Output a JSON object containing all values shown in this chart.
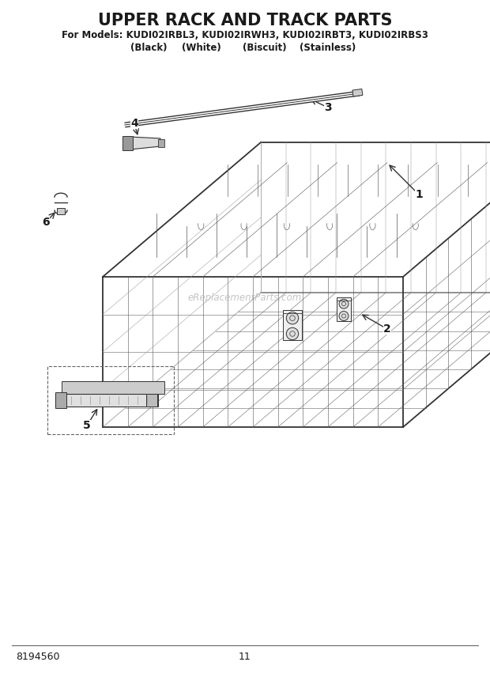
{
  "title": "UPPER RACK AND TRACK PARTS",
  "subtitle1": "For Models: KUDI02IRBL3, KUDI02IRWH3, KUDI02IRBT3, KUDI02IRBS3",
  "subtitle2_parts": [
    "(Black)",
    "(White)",
    "(Biscuit)",
    "(Stainless)"
  ],
  "watermark": "eReplacementParts.com",
  "part_number": "8194560",
  "page_number": "11",
  "background_color": "#ffffff",
  "line_color": "#333333",
  "text_color": "#1a1a1a",
  "title_fontsize": 15,
  "subtitle_fontsize": 8.5,
  "label_fontsize": 10,
  "watermark_color": "#bbbbbb",
  "fig_width": 6.2,
  "fig_height": 8.56,
  "dpi": 100
}
